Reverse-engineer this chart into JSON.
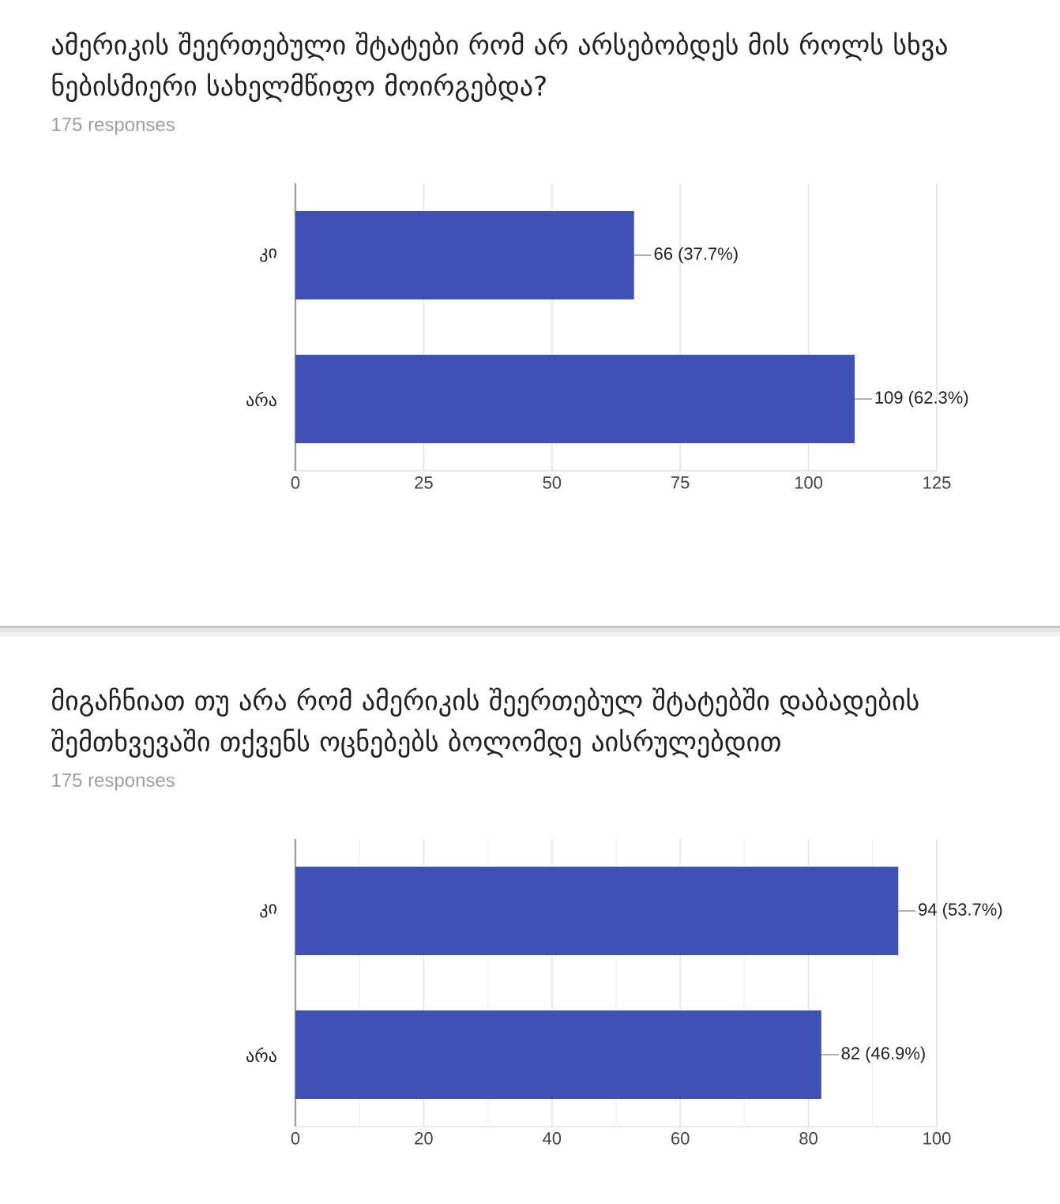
{
  "chart_data": [
    {
      "type": "bar",
      "orientation": "horizontal",
      "title": "ამერიკის შეერთებული შტატები რომ არ არსებობდეს მის როლს სხვა ნებისმიერი სახელმწიფო მოირგებდა?",
      "subtitle": "175 responses",
      "categories": [
        "კი",
        "არა"
      ],
      "values": [
        66,
        109
      ],
      "value_labels": [
        "66 (37.7%)",
        "109 (62.3%)"
      ],
      "color": "#3f51b5",
      "xlim": [
        0,
        125
      ],
      "xticks": [
        0,
        25,
        50,
        75,
        100,
        125
      ],
      "grid": "x"
    },
    {
      "type": "bar",
      "orientation": "horizontal",
      "title": "მიგაჩნიათ თუ არა რომ ამერიკის შეერთებულ შტატებში დაბადების შემთხვევაში თქვენს ოცნებებს ბოლომდე აისრულებდით",
      "subtitle": "175 responses",
      "categories": [
        "კი",
        "არა"
      ],
      "values": [
        94,
        82
      ],
      "value_labels": [
        "94 (53.7%)",
        "82 (46.9%)"
      ],
      "color": "#3f51b5",
      "xlim": [
        0,
        100
      ],
      "xticks": [
        0,
        {
          "value": 10,
          "label": null
        },
        20,
        {
          "value": 30,
          "label": null
        },
        40,
        {
          "value": 50,
          "label": null
        },
        60,
        {
          "value": 70,
          "label": null
        },
        80,
        {
          "value": 90,
          "label": null
        },
        100
      ],
      "grid": "x"
    }
  ]
}
